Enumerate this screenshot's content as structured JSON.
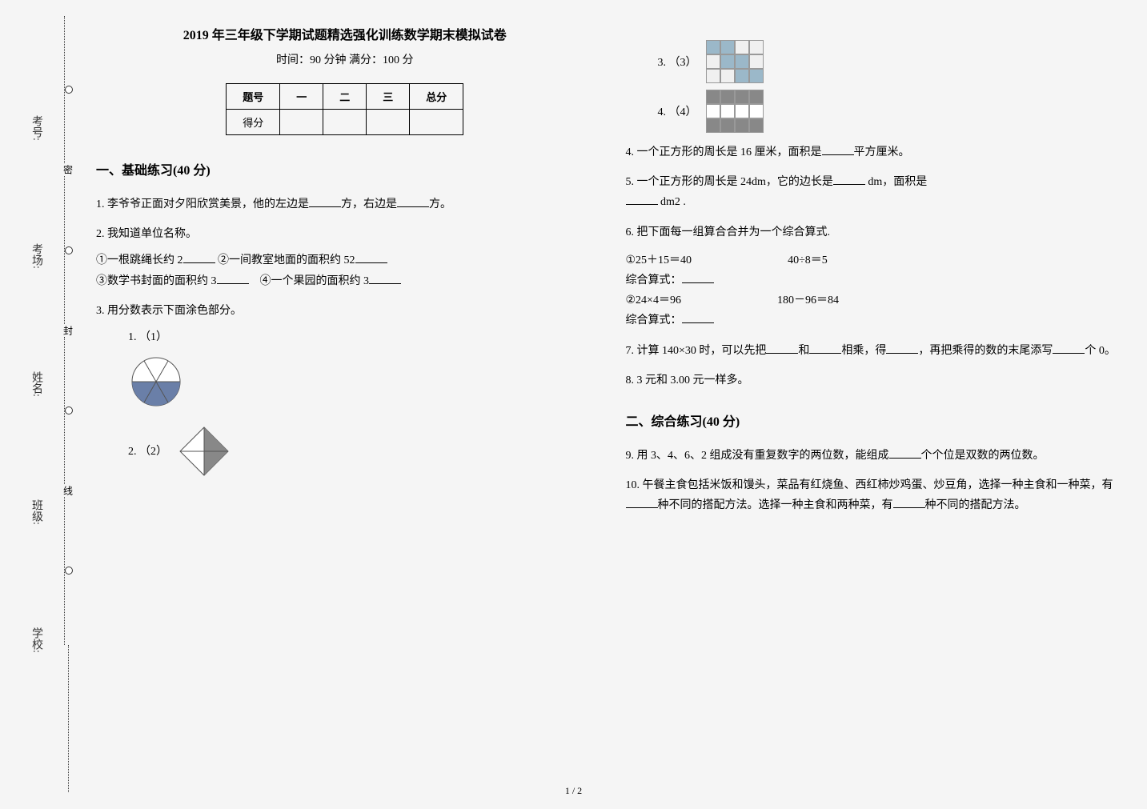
{
  "binding": {
    "labels": [
      "考号:",
      "考场:",
      "姓名:",
      "班级:",
      "学校:"
    ],
    "chars": [
      "密",
      "封",
      "线"
    ]
  },
  "exam": {
    "title": "2019 年三年级下学期试题精选强化训练数学期末模拟试卷",
    "sub": "时间：90 分钟  满分：100 分"
  },
  "score_table": {
    "headers": [
      "题号",
      "一",
      "二",
      "三",
      "总分"
    ],
    "row_label": "得分"
  },
  "sections": {
    "s1": "一、基础练习(40 分)",
    "s2": "二、综合练习(40 分)"
  },
  "q1": {
    "text_a": "1.  李爷爷正面对夕阳欣赏美景，他的左边是",
    "text_b": "方，右边是",
    "text_c": "方。"
  },
  "q2": {
    "text": "2.  我知道单位名称。",
    "items": {
      "a": "①一根跳绳长约 2",
      "b": "②一间教室地面的面积约 52",
      "c": "③数学书封面的面积约 3",
      "d": "④一个果园的面积约 3"
    }
  },
  "q3": {
    "text": "3.  用分数表示下面涂色部分。",
    "labels": [
      "（1）",
      "（2）",
      "（3）",
      "（4）"
    ]
  },
  "q4": {
    "text_a": "4.  一个正方形的周长是 16 厘米，面积是",
    "text_b": "平方厘米。"
  },
  "q5": {
    "text_a": "5.  一个正方形的周长是 24dm，它的边长是",
    "text_b": " dm，面积是",
    "text_c": " dm2 ."
  },
  "q6": {
    "text": "6.  把下面每一组算合合并为一个综合算式.",
    "g1a": "①25＋15＝40",
    "g1b": "40÷8＝5",
    "g1_label": "综合算式：",
    "g2a": "②24×4＝96",
    "g2b": "180－96＝84",
    "g2_label": "综合算式："
  },
  "q7": {
    "a": "7.  计算 140×30 时，可以先把",
    "b": "和",
    "c": "相乘，得",
    "d": "，再把乘得的数的末尾添写",
    "e": "个 0。"
  },
  "q8": {
    "text": "8.  3 元和 3.00 元一样多。"
  },
  "q9": {
    "a": "9.  用 3、4、6、2 组成没有重复数字的两位数，能组成",
    "b": "个个位是双数的两位数。"
  },
  "q10": {
    "a": "10.  午餐主食包括米饭和馒头，菜品有红烧鱼、西红柿炒鸡蛋、炒豆角，选择一种主食和一种菜，有",
    "b": "种不同的搭配方法。选择一种主食和两种菜，有",
    "c": "种不同的搭配方法。"
  },
  "page_num": "1 / 2",
  "shape3": {
    "grid": [
      [
        1,
        1,
        0,
        0
      ],
      [
        0,
        1,
        1,
        0
      ],
      [
        0,
        0,
        1,
        1
      ]
    ],
    "fill": "#9bb8c9",
    "empty": "#f0f0f0",
    "cell": 18
  },
  "shape4": {
    "grid": [
      [
        1,
        1,
        1,
        1
      ],
      [
        0,
        0,
        0,
        0
      ],
      [
        1,
        1,
        1,
        1
      ]
    ],
    "fill": "#888",
    "empty": "#fff",
    "cell": 18
  },
  "shape1": {
    "fill": "#6a7fa8",
    "stroke": "#555"
  },
  "shape2": {
    "fill": "#888"
  }
}
